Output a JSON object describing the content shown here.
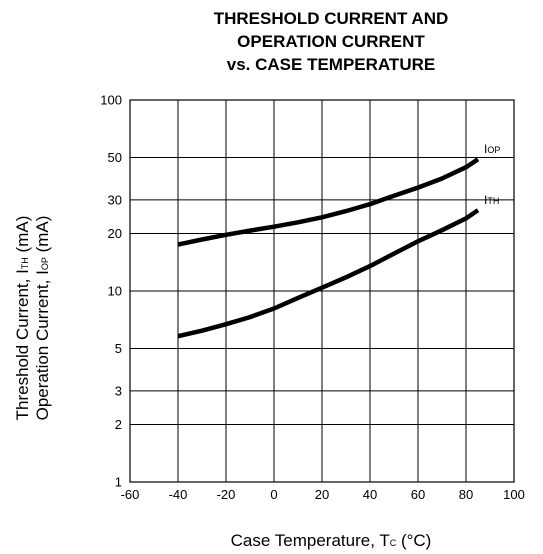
{
  "chart_data": {
    "type": "line",
    "title_lines": [
      "THRESHOLD CURRENT AND",
      "OPERATION CURRENT",
      "vs. CASE TEMPERATURE"
    ],
    "xlabel": {
      "main": "Case Temperature, T",
      "sub": "C",
      "unit": " (°C)"
    },
    "ylabel_line1": {
      "main": "Threshold Current, I",
      "sub": "TH",
      "unit": " (mA)"
    },
    "ylabel_line2": {
      "main": "Operation Current, I",
      "sub": "OP",
      "unit": " (mA)"
    },
    "x_scale": "linear",
    "y_scale": "log",
    "xlim": [
      -60,
      100
    ],
    "ylim": [
      1,
      100
    ],
    "x_ticks": [
      -60,
      -40,
      -20,
      0,
      20,
      40,
      60,
      80,
      100
    ],
    "y_ticks": [
      1,
      2,
      3,
      5,
      10,
      20,
      30,
      50,
      100
    ],
    "grid": true,
    "series": [
      {
        "name": "IOP",
        "label": {
          "main": "I",
          "sub": "OP"
        },
        "color": "#000000",
        "x": [
          -40,
          -30,
          -20,
          -10,
          0,
          10,
          20,
          30,
          40,
          50,
          60,
          70,
          80,
          85
        ],
        "y": [
          17.5,
          18.6,
          19.7,
          20.7,
          21.7,
          22.9,
          24.3,
          26.2,
          28.5,
          31.5,
          34.8,
          38.8,
          44.5,
          49
        ]
      },
      {
        "name": "ITH",
        "label": {
          "main": "I",
          "sub": "TH"
        },
        "color": "#000000",
        "x": [
          -40,
          -30,
          -20,
          -10,
          0,
          10,
          20,
          30,
          40,
          50,
          60,
          70,
          80,
          85
        ],
        "y": [
          5.8,
          6.2,
          6.7,
          7.3,
          8.1,
          9.2,
          10.4,
          11.8,
          13.5,
          15.7,
          18.2,
          20.8,
          24,
          26.5
        ]
      }
    ]
  }
}
